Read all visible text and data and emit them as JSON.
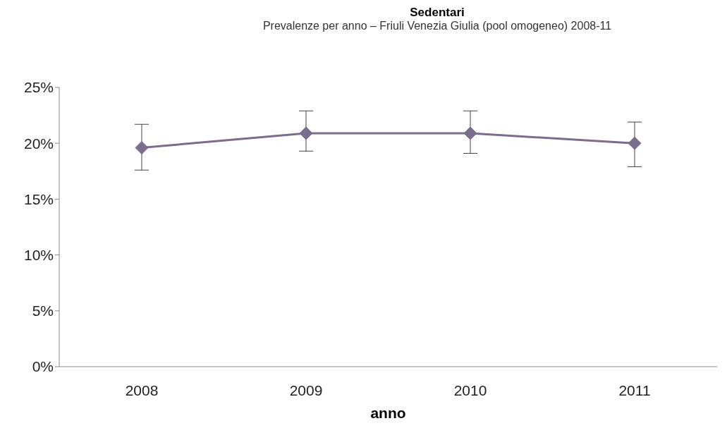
{
  "chart_data": {
    "type": "line",
    "title": "Sedentari",
    "subtitle": "Prevalenze per anno – Friuli Venezia Giulia (pool omogeneo) 2008-11",
    "xlabel": "anno",
    "categories": [
      "2008",
      "2009",
      "2010",
      "2011"
    ],
    "values": [
      19.6,
      20.9,
      20.9,
      20.0
    ],
    "errors": [
      [
        17.6,
        21.7
      ],
      [
        19.3,
        22.9
      ],
      [
        19.1,
        22.9
      ],
      [
        17.9,
        21.9
      ]
    ],
    "color": "#7b6e8c",
    "marker": "diamond",
    "line_style": "solid",
    "grid": false,
    "legend": false,
    "ylim": [
      0,
      25
    ],
    "yticks": [
      {
        "value": 0,
        "label": "0%"
      },
      {
        "value": 5,
        "label": "5%"
      },
      {
        "value": 10,
        "label": "10%"
      },
      {
        "value": 15,
        "label": "15%"
      },
      {
        "value": 20,
        "label": "20%"
      },
      {
        "value": 25,
        "label": "25%"
      }
    ]
  }
}
